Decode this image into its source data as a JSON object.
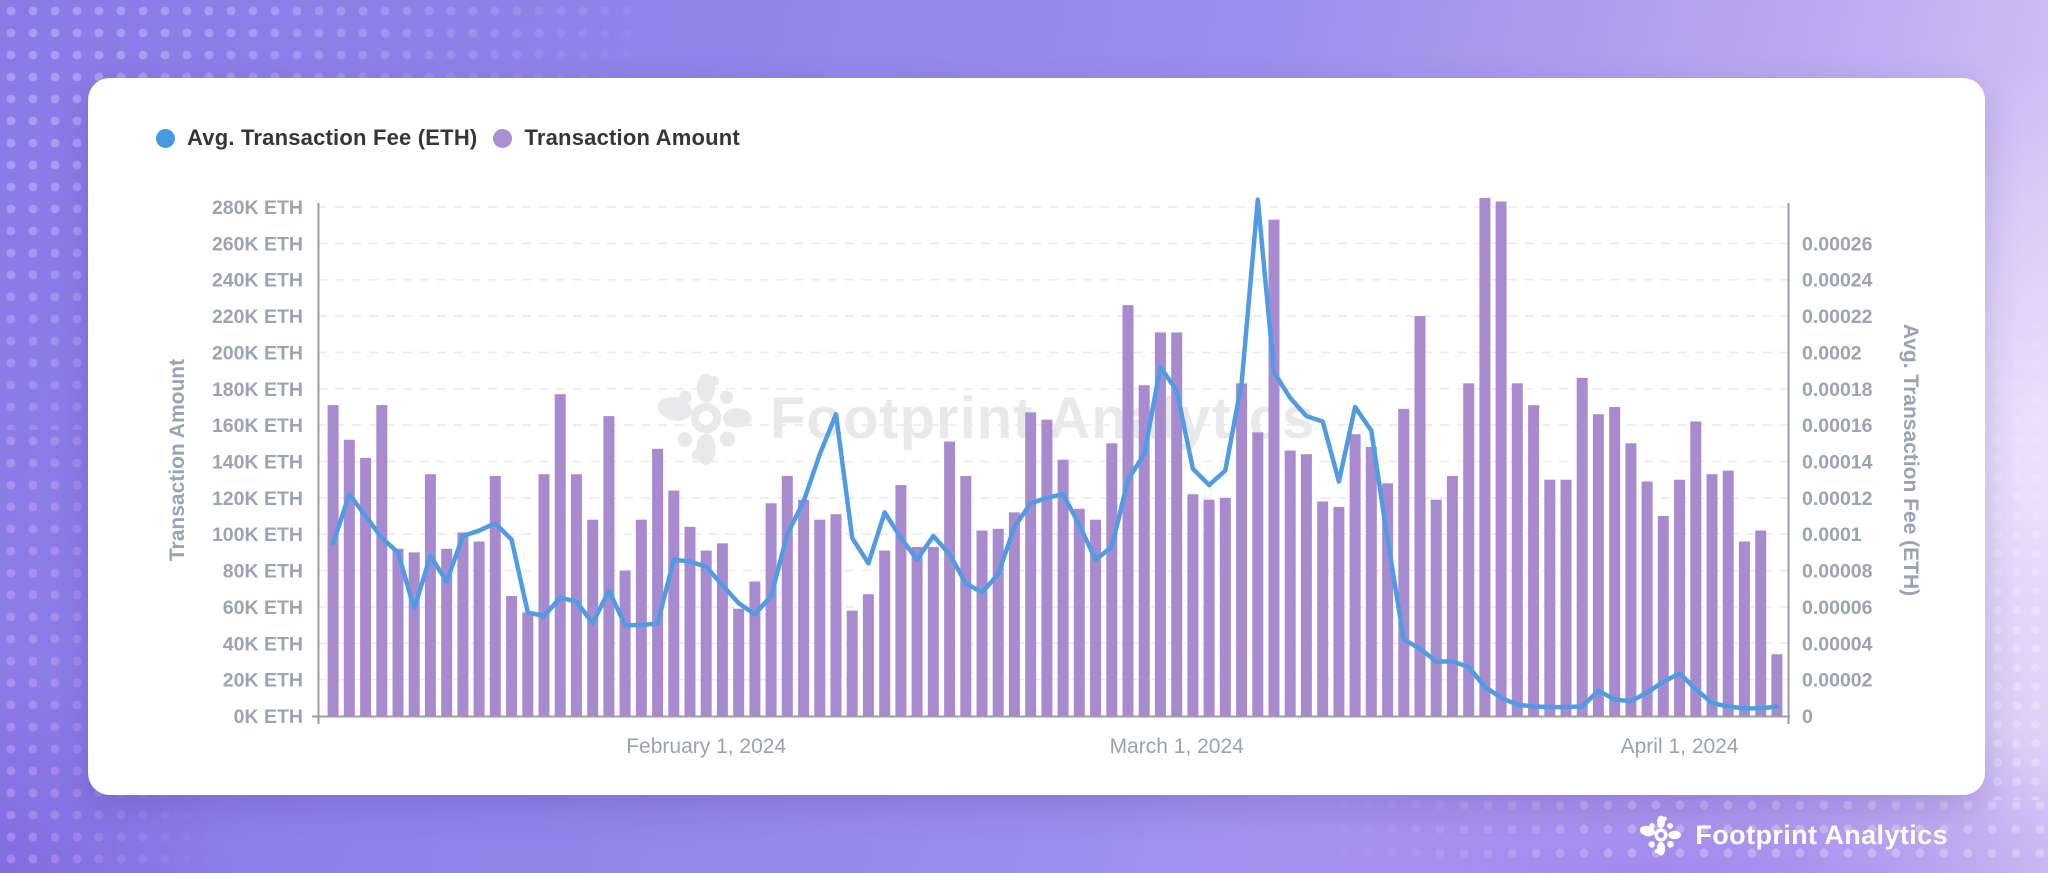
{
  "legend": {
    "items": [
      {
        "label": "Avg. Transaction Fee (ETH)",
        "color": "#4599e8"
      },
      {
        "label": "Transaction Amount",
        "color": "#a98fd5"
      }
    ]
  },
  "watermark": {
    "text": "Footprint Analytics"
  },
  "footer": {
    "brand": "Footprint Analytics"
  },
  "chart_data": {
    "type": "combo",
    "title": "",
    "grid": true,
    "legend_position": "top-left",
    "x_axis": {
      "n_points": 90,
      "labels": [
        {
          "text": "February 1, 2024",
          "index": 23
        },
        {
          "text": "March 1, 2024",
          "index": 52
        },
        {
          "text": "April 1, 2024",
          "index": 83
        }
      ]
    },
    "left_axis": {
      "title": "Transaction Amount",
      "unit": "K ETH",
      "min": 0,
      "max": 280,
      "ticks": [
        "280K ETH",
        "260K ETH",
        "240K ETH",
        "220K ETH",
        "200K ETH",
        "180K ETH",
        "160K ETH",
        "140K ETH",
        "120K ETH",
        "100K ETH",
        "80K ETH",
        "60K ETH",
        "40K ETH",
        "20K ETH",
        "0K ETH"
      ]
    },
    "right_axis": {
      "title": "Avg. Transaction Fee (ETH)",
      "min": 0,
      "max": 0.00028,
      "ticks": [
        "0.00026",
        "0.00024",
        "0.00022",
        "0.0002",
        "0.00018",
        "0.00016",
        "0.00014",
        "0.00012",
        "0.0001",
        "0.00008",
        "0.00006",
        "0.00004",
        "0.00002",
        "0"
      ]
    },
    "series": [
      {
        "name": "Transaction Amount",
        "type": "bar",
        "axis": "left",
        "unit": "K ETH",
        "color": "#a78bce",
        "values": [
          171,
          152,
          142,
          171,
          92,
          90,
          133,
          92,
          101,
          96,
          132,
          66,
          57,
          133,
          177,
          133,
          108,
          165,
          80,
          108,
          147,
          124,
          104,
          91,
          95,
          59,
          74,
          117,
          132,
          119,
          108,
          111,
          58,
          67,
          91,
          127,
          93,
          93,
          151,
          132,
          102,
          103,
          112,
          167,
          163,
          141,
          114,
          108,
          150,
          226,
          182,
          211,
          211,
          122,
          119,
          120,
          183,
          156,
          273,
          146,
          144,
          118,
          115,
          155,
          148,
          128,
          169,
          220,
          119,
          132,
          183,
          285,
          283,
          183,
          171,
          130,
          130,
          186,
          166,
          170,
          150,
          129,
          110,
          130,
          162,
          133,
          135,
          96,
          102,
          34
        ]
      },
      {
        "name": "Avg. Transaction Fee (ETH)",
        "type": "line",
        "axis": "right",
        "unit": "ETH",
        "color": "#4f9ce5",
        "values": [
          9.5e-05,
          0.000122,
          0.00011,
          9.8e-05,
          9e-05,
          5.9e-05,
          8.8e-05,
          7.4e-05,
          9.9e-05,
          0.000102,
          0.000106,
          9.7e-05,
          5.7e-05,
          5.5e-05,
          6.5e-05,
          6.3e-05,
          5.1e-05,
          6.9e-05,
          5e-05,
          5e-05,
          5.1e-05,
          8.6e-05,
          8.5e-05,
          8.2e-05,
          7.2e-05,
          6.2e-05,
          5.6e-05,
          6.6e-05,
          0.0001,
          0.000118,
          0.000144,
          0.000166,
          9.8e-05,
          8.4e-05,
          0.000112,
          9.8e-05,
          8.6e-05,
          9.9e-05,
          8.9e-05,
          7.3e-05,
          6.8e-05,
          7.8e-05,
          0.000104,
          0.000117,
          0.00012,
          0.000122,
          0.000105,
          8.6e-05,
          9.3e-05,
          0.00013,
          0.000144,
          0.000192,
          0.000179,
          0.000136,
          0.000127,
          0.000135,
          0.000183,
          0.000284,
          0.000189,
          0.000175,
          0.000165,
          0.000162,
          0.000129,
          0.00017,
          0.000157,
          9.7e-05,
          4.2e-05,
          3.7e-05,
          3e-05,
          3e-05,
          2.7e-05,
          1.6e-05,
          1e-05,
          6.2e-06,
          5.3e-06,
          4.9e-06,
          4.9e-06,
          5.3e-06,
          1.39e-05,
          9.1e-06,
          8.1e-06,
          1.29e-05,
          1.87e-05,
          2.35e-05,
          1.48e-05,
          7.1e-06,
          5.2e-06,
          4.2e-06,
          4.2e-06,
          5.2e-06
        ]
      }
    ]
  }
}
